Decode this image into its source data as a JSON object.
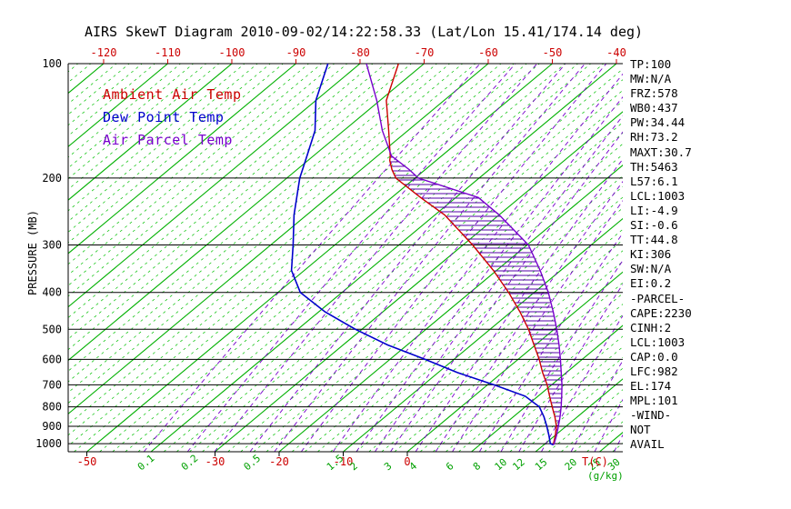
{
  "title": "AIRS SkewT Diagram 2010-09-02/14:22:58.33 (Lat/Lon 15.41/174.14 deg)",
  "legend": {
    "items": [
      {
        "label": "Ambient Air Temp",
        "color": "#cc0000"
      },
      {
        "label": "Dew Point Temp",
        "color": "#0000cc"
      },
      {
        "label": "Air Parcel Temp",
        "color": "#7700cc"
      }
    ]
  },
  "stats": {
    "lines": [
      "TP:100",
      "MW:N/A",
      "FRZ:578",
      "WB0:437",
      "PW:34.44",
      "RH:73.2",
      "MAXT:30.7",
      "TH:5463",
      "L57:6.1",
      "LCL:1003",
      "LI:-4.9",
      "SI:-0.6",
      "TT:44.8",
      "KI:306",
      "SW:N/A",
      "EI:0.2",
      "-PARCEL-",
      "CAPE:2230",
      "CINH:2",
      "LCL:1003",
      "CAP:0.0",
      "LFC:982",
      "EL:174",
      "MPL:101",
      "-WIND-",
      "NOT",
      "AVAIL"
    ]
  },
  "axes": {
    "pressure_title": "PRESSURE (MB)",
    "pressure_ticks": [
      100,
      200,
      300,
      400,
      500,
      600,
      700,
      800,
      900,
      1000
    ],
    "top_temp_ticks": [
      -120,
      -110,
      -100,
      -90,
      -80,
      -70,
      -60,
      -50,
      -40
    ],
    "bottom_temp_ticks": [
      -50,
      -30,
      -20,
      -10,
      0
    ],
    "mixing_ratio_ticks": [
      0.1,
      0.2,
      0.5,
      1.5,
      2,
      3,
      4,
      6,
      8,
      10,
      12,
      15,
      20,
      25,
      30
    ],
    "temp_unit_label": "T(C)",
    "mixing_unit_label": "(g/kg)"
  },
  "colors": {
    "isotherm": "#00b000",
    "minor_isotherm": "#00c000",
    "mixing_line": "#7700cc",
    "pressure_line": "#000000",
    "ambient": "#cc0000",
    "dewpoint": "#0000cc",
    "parcel": "#7700cc",
    "hatch": "#5500aa",
    "axis": "#000000"
  },
  "chart_data": {
    "type": "skewt-log-p",
    "title": "AIRS SkewT Diagram 2010-09-02/14:22:58.33 (Lat/Lon 15.41/174.14 deg)",
    "pressure_axis": {
      "min": 100,
      "max": 1050,
      "scale": "log",
      "unit": "MB"
    },
    "temp_axis": {
      "unit": "C",
      "top_labels_at_mb": 100,
      "bottom_labels_at_mb": 1050
    },
    "isotherms": {
      "min": -160,
      "max": 40,
      "step": 10,
      "minor_step": 2
    },
    "mixing_ratio_lines_gkg": [
      0.1,
      0.2,
      0.3,
      0.5,
      0.7,
      1,
      1.5,
      2,
      2.5,
      3,
      4,
      5,
      6,
      8,
      10,
      12,
      15,
      20,
      25,
      30
    ],
    "series": [
      {
        "name": "Ambient Air Temp",
        "color": "#cc0000",
        "points": [
          [
            1007,
            21.5
          ],
          [
            1000,
            21.3
          ],
          [
            950,
            20.0
          ],
          [
            900,
            18.5
          ],
          [
            850,
            16.5
          ],
          [
            800,
            14.2
          ],
          [
            750,
            11.8
          ],
          [
            700,
            9.3
          ],
          [
            650,
            6.3
          ],
          [
            600,
            3.3
          ],
          [
            550,
            -0.2
          ],
          [
            500,
            -4.0
          ],
          [
            450,
            -8.6
          ],
          [
            400,
            -14.0
          ],
          [
            350,
            -20.5
          ],
          [
            300,
            -28.5
          ],
          [
            250,
            -38.5
          ],
          [
            225,
            -45.5
          ],
          [
            200,
            -53.0
          ],
          [
            190,
            -55.2
          ],
          [
            180,
            -57.2
          ],
          [
            175,
            -58.0
          ],
          [
            150,
            -63.0
          ],
          [
            125,
            -69.0
          ],
          [
            100,
            -74.0
          ]
        ]
      },
      {
        "name": "Dew Point Temp",
        "color": "#0000cc",
        "points": [
          [
            1007,
            21.5
          ],
          [
            1000,
            20.8
          ],
          [
            950,
            19.0
          ],
          [
            900,
            17.0
          ],
          [
            850,
            14.8
          ],
          [
            800,
            12.2
          ],
          [
            750,
            8.0
          ],
          [
            700,
            1.0
          ],
          [
            650,
            -7.0
          ],
          [
            600,
            -14.5
          ],
          [
            550,
            -23.0
          ],
          [
            500,
            -31.0
          ],
          [
            450,
            -39.0
          ],
          [
            400,
            -46.5
          ],
          [
            350,
            -52.0
          ],
          [
            300,
            -56.5
          ],
          [
            250,
            -62.0
          ],
          [
            200,
            -68.0
          ],
          [
            175,
            -71.0
          ],
          [
            150,
            -74.5
          ],
          [
            125,
            -80.0
          ],
          [
            100,
            -85.0
          ]
        ]
      },
      {
        "name": "Air Parcel Temp",
        "color": "#7700cc",
        "points": [
          [
            1007,
            21.5
          ],
          [
            1000,
            21.4
          ],
          [
            950,
            20.2
          ],
          [
            900,
            18.8
          ],
          [
            850,
            17.3
          ],
          [
            800,
            15.6
          ],
          [
            750,
            13.7
          ],
          [
            700,
            11.6
          ],
          [
            650,
            9.2
          ],
          [
            600,
            6.6
          ],
          [
            550,
            3.7
          ],
          [
            500,
            0.4
          ],
          [
            450,
            -3.4
          ],
          [
            400,
            -7.8
          ],
          [
            350,
            -13.2
          ],
          [
            300,
            -19.8
          ],
          [
            250,
            -30.0
          ],
          [
            225,
            -36.5
          ],
          [
            200,
            -49.5
          ],
          [
            190,
            -52.5
          ],
          [
            180,
            -56.0
          ],
          [
            175,
            -57.8
          ],
          [
            150,
            -64.0
          ],
          [
            125,
            -70.5
          ],
          [
            100,
            -79.0
          ]
        ]
      }
    ],
    "cape_hatch": {
      "between": [
        "Ambient Air Temp",
        "Air Parcel Temp"
      ],
      "from_mb": 985,
      "to_mb": 176,
      "style": "horizontal-lines"
    }
  }
}
